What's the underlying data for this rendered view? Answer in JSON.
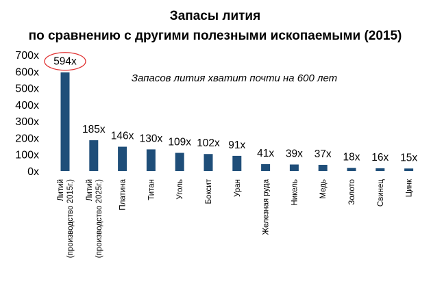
{
  "chart_data": {
    "type": "bar",
    "title": "Запасы лития",
    "subtitle": "по сравнению с другими полезными ископаемыми (2015)",
    "annotation": "Запасов лития хватит почти на 600 лет",
    "categories": [
      [
        "Литий",
        "(производство 2015г.)"
      ],
      [
        "Литий",
        "(производство 2025г.)"
      ],
      [
        "Платина"
      ],
      [
        "Титан"
      ],
      [
        "Уголь"
      ],
      [
        "Боксит"
      ],
      [
        "Уран"
      ],
      [
        "Железная руда"
      ],
      [
        "Никель"
      ],
      [
        "Медь"
      ],
      [
        "Золото"
      ],
      [
        "Свинец"
      ],
      [
        "Цинк"
      ]
    ],
    "values": [
      594,
      185,
      146,
      130,
      109,
      102,
      91,
      41,
      39,
      37,
      18,
      16,
      15
    ],
    "data_labels": [
      "594x",
      "185x",
      "146x",
      "130x",
      "109x",
      "102x",
      "91x",
      "41x",
      "39x",
      "37x",
      "18x",
      "16x",
      "15x"
    ],
    "yticks": [
      0,
      100,
      200,
      300,
      400,
      500,
      600,
      700
    ],
    "ytick_labels": [
      "0x",
      "100x",
      "200x",
      "300x",
      "400x",
      "500x",
      "600x",
      "700x"
    ],
    "ylim": [
      0,
      700
    ],
    "xlabel": "",
    "ylabel": "",
    "grid": false,
    "highlight_index": 0,
    "colors": {
      "bar": "#1f4e79",
      "highlight_ring": "#e03030"
    }
  }
}
